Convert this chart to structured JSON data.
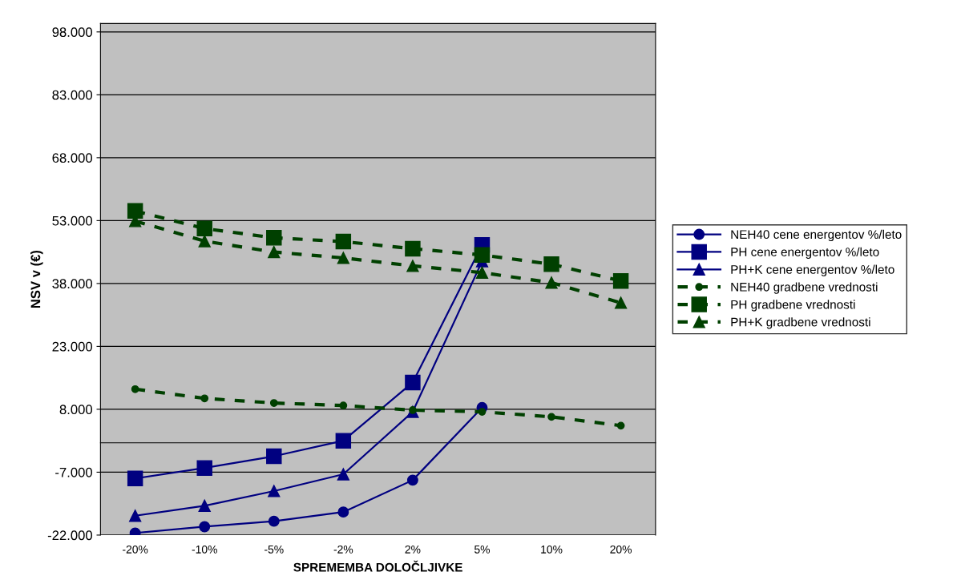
{
  "chart_data": {
    "type": "line",
    "xlabel": "SPREMEMBA DOLOČLJIVKE",
    "ylabel": "NSV v (€)",
    "categories": [
      "-20%",
      "-10%",
      "-5%",
      "-2%",
      "2%",
      "5%",
      "10%",
      "20%"
    ],
    "ylim": [
      -22000,
      100000
    ],
    "yticks": [
      {
        "value": -22000,
        "label": "-22.000"
      },
      {
        "value": -7000,
        "label": "-7.000"
      },
      {
        "value": 8000,
        "label": "8.000"
      },
      {
        "value": 23000,
        "label": "23.000"
      },
      {
        "value": 38000,
        "label": "38.000"
      },
      {
        "value": 53000,
        "label": "53.000"
      },
      {
        "value": 68000,
        "label": "68.000"
      },
      {
        "value": 83000,
        "label": "83.000"
      },
      {
        "value": 98000,
        "label": "98.000"
      }
    ],
    "grid": "y",
    "legend": "right",
    "series": [
      {
        "name": "NEH40 cene energentov %/leto",
        "color": "#000080",
        "marker": "circle",
        "line_style": "solid",
        "values": [
          -21500,
          -20000,
          -18700,
          -16500,
          -8900,
          8400,
          null,
          null
        ]
      },
      {
        "name": "PH cene energentov %/leto",
        "color": "#000080",
        "marker": "square",
        "line_style": "solid",
        "values": [
          -8500,
          -6000,
          -3200,
          500,
          14400,
          47200,
          null,
          null
        ]
      },
      {
        "name": "PH+K cene energentov %/leto",
        "color": "#000080",
        "marker": "triangle",
        "line_style": "solid",
        "values": [
          -17400,
          -15000,
          -11500,
          -7500,
          7400,
          43300,
          null,
          null
        ]
      },
      {
        "name": "NEH40 gradbene vrednosti",
        "color": "#004000",
        "marker": "circle",
        "line_style": "dashed",
        "values": [
          12800,
          10600,
          9500,
          8900,
          7800,
          7400,
          6200,
          4100
        ]
      },
      {
        "name": "PH gradbene vrednosti",
        "color": "#004000",
        "marker": "square",
        "line_style": "dashed",
        "values": [
          55300,
          51100,
          48900,
          48000,
          46300,
          44800,
          42600,
          38600
        ]
      },
      {
        "name": "PH+K gradbene vrednosti",
        "color": "#004000",
        "marker": "triangle",
        "line_style": "dashed",
        "values": [
          52900,
          48100,
          45500,
          44100,
          42200,
          40600,
          38200,
          33400
        ]
      }
    ]
  }
}
